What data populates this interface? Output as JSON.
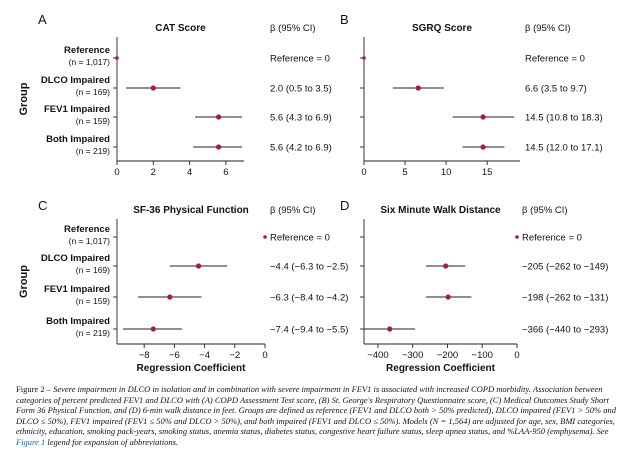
{
  "row_labels": {
    "group_axis_label": "Group",
    "rows": [
      {
        "line1": "Reference",
        "line2": "(n = 1,017)"
      },
      {
        "line1": "DLCO Impaired",
        "line2": "(n = 169)"
      },
      {
        "line1": "FEV1 Impaired",
        "line2": "(n = 159)"
      },
      {
        "line1": "Both Impaired",
        "line2": "(n = 219)"
      }
    ]
  },
  "ci_header": "β (95% CI)",
  "chart_data": [
    {
      "type": "forest",
      "panel": "A",
      "title": "CAT Score",
      "xlabel": "",
      "xlim": [
        0,
        7
      ],
      "xticks": [
        0,
        2,
        4,
        6
      ],
      "categories": [
        "Reference",
        "DLCO Impaired",
        "FEV1 Impaired",
        "Both Impaired"
      ],
      "estimates": [
        0,
        2.0,
        5.6,
        5.6
      ],
      "ci_low": [
        0,
        0.5,
        4.3,
        4.2
      ],
      "ci_high": [
        0,
        3.5,
        6.9,
        6.9
      ],
      "ci_labels": [
        "Reference = 0",
        "2.0 (0.5 to 3.5)",
        "5.6 (4.3 to 6.9)",
        "5.6 (4.2 to 6.9)"
      ]
    },
    {
      "type": "forest",
      "panel": "B",
      "title": "SGRQ Score",
      "xlabel": "",
      "xlim": [
        0,
        19
      ],
      "xticks": [
        0,
        5,
        10,
        15
      ],
      "categories": [
        "Reference",
        "DLCO Impaired",
        "FEV1 Impaired",
        "Both Impaired"
      ],
      "estimates": [
        0,
        6.6,
        14.5,
        14.5
      ],
      "ci_low": [
        0,
        3.5,
        10.8,
        12.0
      ],
      "ci_high": [
        0,
        9.7,
        18.3,
        17.1
      ],
      "ci_labels": [
        "Reference = 0",
        "6.6 (3.5 to 9.7)",
        "14.5 (10.8 to 18.3)",
        "14.5 (12.0 to 17.1)"
      ]
    },
    {
      "type": "forest",
      "panel": "C",
      "title": "SF-36 Physical Function",
      "xlabel": "Regression Coefficient",
      "xlim": [
        -9.8,
        0
      ],
      "xticks": [
        -8,
        -6,
        -4,
        -2,
        0
      ],
      "categories": [
        "Reference",
        "DLCO Impaired",
        "FEV1 Impaired",
        "Both Impaired"
      ],
      "estimates": [
        0,
        -4.4,
        -6.3,
        -7.4
      ],
      "ci_low": [
        0,
        -6.3,
        -8.4,
        -9.4
      ],
      "ci_high": [
        0,
        -2.5,
        -4.2,
        -5.5
      ],
      "ci_labels": [
        "Reference = 0",
        "−4.4 (−6.3 to −2.5)",
        "−6.3 (−8.4 to −4.2)",
        "−7.4 (−9.4 to −5.5)"
      ]
    },
    {
      "type": "forest",
      "panel": "D",
      "title": "Six Minute Walk Distance",
      "xlabel": "Regression Coefficient",
      "xlim": [
        -440,
        0
      ],
      "xticks": [
        -400,
        -300,
        -200,
        -100,
        0
      ],
      "categories": [
        "Reference",
        "DLCO Impaired",
        "FEV1 Impaired",
        "Both Impaired"
      ],
      "estimates": [
        0,
        -205,
        -198,
        -366
      ],
      "ci_low": [
        0,
        -262,
        -262,
        -440
      ],
      "ci_high": [
        0,
        -149,
        -131,
        -293
      ],
      "ci_labels": [
        "Reference = 0",
        "−205 (−262 to −149)",
        "−198 (−262 to −131)",
        "−366 (−440 to −293)"
      ]
    }
  ],
  "caption": {
    "lead": "Figure 2 – ",
    "body": "Severe impairment in DLCO in isolation and in combination with severe impairment in FEV1 is associated with increased COPD morbidity. Association between categories of percent predicted FEV1 and DLCO with (A) COPD Assessment Test score, (B) St. George's Respiratory Questionnaire score, (C) Medical Outcomes Study Short Form 36 Physical Function, and (D) 6-min walk distance in feet. Groups are defined as reference (FEV1 and DLCO both > 50% predicted), DLCO impaired (FEV1 > 50% and DLCO ≤ 50%), FEV1 impaired (FEV1 ≤ 50% and DLCO > 50%), and both impaired (FEV1 and DLCO ≤ 50%). Models (N = 1,564) are adjusted for age, sex, BMI categories, ethnicity, education, smoking pack-years, smoking status, anemia status, diabetes status, congestive heart failure status, sleep apnea status, and %LAA-950 (emphysema). See ",
    "link": "Figure 1",
    "tail": " legend for expansion of abbreviations."
  },
  "colors": {
    "point": "#a8184b",
    "axis": "#222222",
    "text": "#111111",
    "link": "#1a5fa8"
  }
}
